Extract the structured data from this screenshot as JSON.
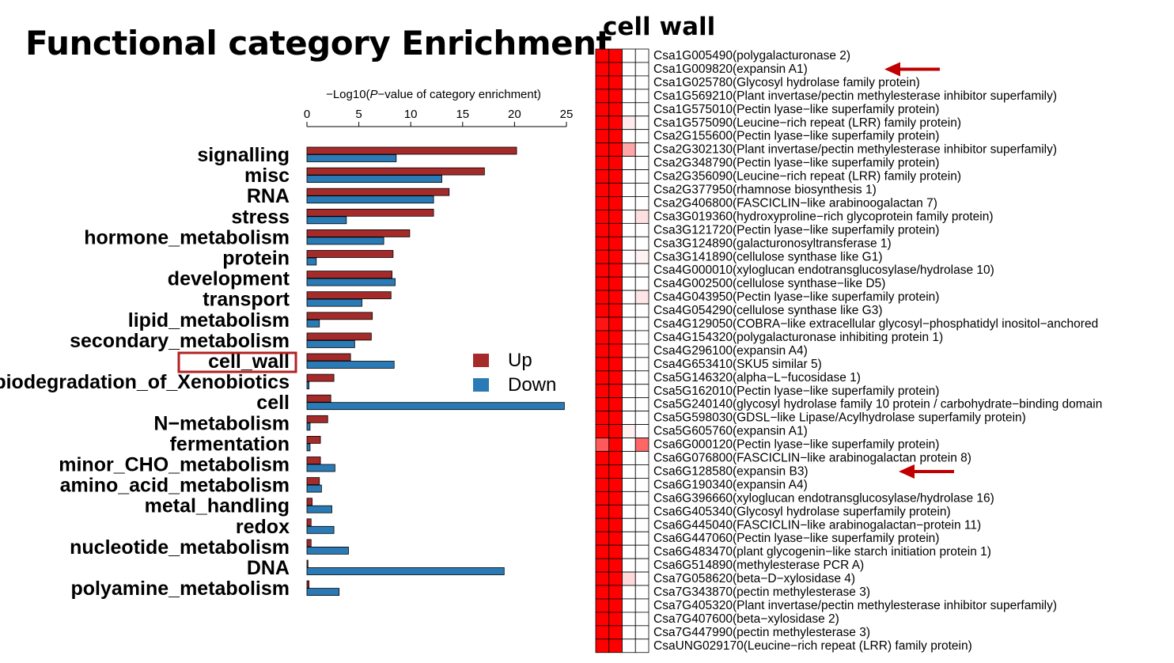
{
  "slide": {
    "title": "Functional category Enrichment",
    "heatmap_title": "cell wall"
  },
  "colors": {
    "up": "#a52a2a",
    "down": "#2a7ab5",
    "highlight_box": "#b22222",
    "arrow": "#c00000",
    "heat_high": "#ff0000",
    "heat_low": "#ffffff",
    "heat_grid": "#000000"
  },
  "chart_data": [
    {
      "type": "bar",
      "orientation": "horizontal",
      "xlabel_prefix": "−Log10(",
      "xlabel_italic": "P",
      "xlabel_suffix": "−value of category enrichment)",
      "xlim": [
        0,
        25
      ],
      "xticks": [
        "0",
        "5",
        "10",
        "15",
        "20",
        "25"
      ],
      "grid": false,
      "legend": "right",
      "highlighted_category": "cell_wall",
      "categories": [
        "signalling",
        "misc",
        "RNA",
        "stress",
        "hormone_metabolism",
        "protein",
        "development",
        "transport",
        "lipid_metabolism",
        "secondary_metabolism",
        "cell_wall",
        "biodegradation_of_Xenobiotics",
        "cell",
        "N−metabolism",
        "fermentation",
        "minor_CHO_metabolism",
        "amino_acid_metabolism",
        "metal_handling",
        "redox",
        "nucleotide_metabolism",
        "DNA",
        "polyamine_metabolism"
      ],
      "series": [
        {
          "name": "Up",
          "values": [
            20.2,
            17.1,
            13.7,
            12.2,
            9.9,
            8.3,
            8.2,
            8.1,
            6.3,
            6.2,
            4.2,
            2.6,
            2.3,
            2.0,
            1.3,
            1.3,
            1.2,
            0.5,
            0.4,
            0.4,
            0.1,
            0.2
          ]
        },
        {
          "name": "Down",
          "values": [
            8.6,
            13.0,
            12.2,
            3.8,
            7.4,
            0.9,
            8.5,
            5.3,
            1.2,
            4.6,
            8.4,
            0.2,
            24.8,
            0.3,
            0.3,
            2.7,
            1.4,
            2.4,
            2.6,
            4.0,
            19.0,
            3.1
          ]
        }
      ]
    },
    {
      "type": "heatmap",
      "columns": 4,
      "row_labels": [
        "Csa1G005490(polygalacturonase 2)",
        "Csa1G009820(expansin A1)",
        "Csa1G025780(Glycosyl hydrolase family protein)",
        "Csa1G569210(Plant invertase/pectin methylesterase inhibitor superfamily)",
        "Csa1G575010(Pectin lyase−like superfamily protein)",
        "Csa1G575090(Leucine−rich repeat (LRR) family protein)",
        "Csa2G155600(Pectin lyase−like superfamily protein)",
        "Csa2G302130(Plant invertase/pectin methylesterase inhibitor superfamily)",
        "Csa2G348790(Pectin lyase−like superfamily protein)",
        "Csa2G356090(Leucine−rich repeat (LRR) family protein)",
        "Csa2G377950(rhamnose biosynthesis 1)",
        "Csa2G406800(FASCICLIN−like arabinoogalactan 7)",
        "Csa3G019360(hydroxyproline−rich glycoprotein family protein)",
        "Csa3G121720(Pectin lyase−like superfamily protein)",
        "Csa3G124890(galacturonosyltransferase 1)",
        "Csa3G141890(cellulose synthase like G1)",
        "Csa4G000010(xyloglucan endotransglucosylase/hydrolase 10)",
        "Csa4G002500(cellulose synthase−like D5)",
        "Csa4G043950(Pectin lyase−like superfamily protein)",
        "Csa4G054290(cellulose synthase like G3)",
        "Csa4G129050(COBRA−like extracellular glycosyl−phosphatidyl inositol−anchored",
        "Csa4G154320(polygalacturonase inhibiting protein 1)",
        "Csa4G296100(expansin A4)",
        "Csa4G653410(SKU5 similar 5)",
        "Csa5G146320(alpha−L−fucosidase 1)",
        "Csa5G162010(Pectin lyase−like superfamily protein)",
        "Csa5G240140(glycosyl hydrolase family 10 protein / carbohydrate−binding domain",
        "Csa5G598030(GDSL−like Lipase/Acylhydrolase superfamily protein)",
        "Csa5G605760(expansin A1)",
        "Csa6G000120(Pectin lyase−like superfamily protein)",
        "Csa6G076800(FASCICLIN−like arabinogalactan protein 8)",
        "Csa6G128580(expansin B3)",
        "Csa6G190340(expansin A4)",
        "Csa6G396660(xyloglucan endotransglucosylase/hydrolase 16)",
        "Csa6G405340(Glycosyl hydrolase superfamily protein)",
        "Csa6G445040(FASCICLIN−like arabinogalactan−protein 11)",
        "Csa6G447060(Pectin lyase−like superfamily protein)",
        "Csa6G483470(plant glycogenin−like starch initiation protein 1)",
        "Csa6G514890(methylesterase PCR A)",
        "Csa7G058620(beta−D−xylosidase 4)",
        "Csa7G343870(pectin methylesterase 3)",
        "Csa7G405320(Plant invertase/pectin methylesterase inhibitor superfamily)",
        "Csa7G407600(beta−xylosidase 2)",
        "Csa7G447990(pectin methylesterase 3)",
        "CsaUNG029170(Leucine−rich repeat (LRR) family protein)"
      ],
      "values": [
        [
          1,
          1,
          0,
          0
        ],
        [
          1,
          1,
          0,
          0
        ],
        [
          1,
          1,
          0,
          0
        ],
        [
          1,
          1,
          0,
          0
        ],
        [
          1,
          1,
          0,
          0
        ],
        [
          1,
          1,
          0.08,
          0
        ],
        [
          1,
          1,
          0,
          0
        ],
        [
          1,
          1,
          0.35,
          0
        ],
        [
          1,
          1,
          0,
          0
        ],
        [
          1,
          1,
          0,
          0
        ],
        [
          1,
          1,
          0,
          0
        ],
        [
          1,
          1,
          0,
          0
        ],
        [
          1,
          1,
          0,
          0.12
        ],
        [
          1,
          1,
          0,
          0
        ],
        [
          1,
          1,
          0,
          0
        ],
        [
          1,
          1,
          0,
          0.05
        ],
        [
          1,
          1,
          0,
          0
        ],
        [
          1,
          1,
          0,
          0
        ],
        [
          1,
          1,
          0,
          0.1
        ],
        [
          1,
          1,
          0,
          0
        ],
        [
          0.92,
          1,
          0,
          0
        ],
        [
          1,
          1,
          0,
          0
        ],
        [
          1,
          1,
          0,
          0
        ],
        [
          1,
          1,
          0,
          0
        ],
        [
          1,
          1,
          0,
          0
        ],
        [
          1,
          1,
          0,
          0
        ],
        [
          1,
          1,
          0,
          0
        ],
        [
          1,
          1,
          0,
          0
        ],
        [
          1,
          1,
          0.06,
          0
        ],
        [
          0.65,
          1,
          0,
          0.6
        ],
        [
          1,
          1,
          0,
          0
        ],
        [
          1,
          1,
          0,
          0
        ],
        [
          1,
          1,
          0,
          0
        ],
        [
          1,
          1,
          0,
          0
        ],
        [
          1,
          1,
          0,
          0
        ],
        [
          1,
          1,
          0,
          0
        ],
        [
          1,
          1,
          0,
          0
        ],
        [
          1,
          1,
          0,
          0
        ],
        [
          1,
          1,
          0,
          0
        ],
        [
          1,
          1,
          0.15,
          0
        ],
        [
          1,
          1,
          0,
          0
        ],
        [
          1,
          1,
          0,
          0
        ],
        [
          1,
          1,
          0,
          0
        ],
        [
          1,
          1,
          0,
          0
        ],
        [
          1,
          1,
          0,
          0
        ]
      ],
      "arrows_at_rows": [
        1,
        31
      ]
    }
  ]
}
